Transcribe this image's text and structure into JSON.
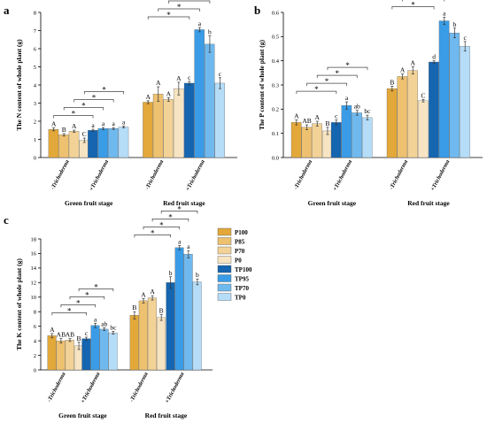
{
  "colors": {
    "P100": "#E3A83A",
    "P85": "#EDC170",
    "P70": "#F2D296",
    "P0": "#F6E4C2",
    "TP100": "#1565B0",
    "TP95": "#3A9CE6",
    "TP70": "#70B9EE",
    "TP0": "#B6DDF8"
  },
  "legend": [
    "P100",
    "P85",
    "P70",
    "P0",
    "TP100",
    "TP95",
    "TP70",
    "TP0"
  ],
  "chart_data": [
    {
      "panel": "a",
      "type": "bar",
      "ylabel": "The N content of whole plant (g)",
      "ylim": [
        0,
        8
      ],
      "yticks": [
        0,
        1,
        2,
        3,
        4,
        5,
        6,
        7,
        8
      ],
      "stages": [
        "Green fruit stage",
        "Red fruit stage"
      ],
      "treatments": [
        "-Trichoderma",
        "+Trichoderma"
      ],
      "groups": [
        {
          "stage": 0,
          "treatment": 0,
          "series": [
            "P100",
            "P85",
            "P70",
            "P0"
          ],
          "values": [
            1.55,
            1.25,
            1.45,
            0.95
          ],
          "errors": [
            0.08,
            0.07,
            0.06,
            0.12
          ],
          "letters": [
            "A",
            "B",
            "A",
            "C"
          ]
        },
        {
          "stage": 0,
          "treatment": 1,
          "series": [
            "TP100",
            "TP95",
            "TP70",
            "TP0"
          ],
          "values": [
            1.5,
            1.6,
            1.6,
            1.68
          ],
          "errors": [
            0.06,
            0.06,
            0.05,
            0.05
          ],
          "letters": [
            "a",
            "a",
            "a",
            "a"
          ]
        },
        {
          "stage": 1,
          "treatment": 0,
          "series": [
            "P100",
            "P85",
            "P70",
            "P0"
          ],
          "values": [
            3.05,
            3.5,
            3.2,
            3.8
          ],
          "errors": [
            0.08,
            0.4,
            0.1,
            0.35
          ],
          "letters": [
            "A",
            "A",
            "A",
            "A"
          ]
        },
        {
          "stage": 1,
          "treatment": 1,
          "series": [
            "TP100",
            "TP95",
            "TP70",
            "TP0"
          ],
          "values": [
            4.1,
            7.05,
            6.25,
            4.1
          ],
          "errors": [
            0.1,
            0.12,
            0.45,
            0.3
          ],
          "letters": [
            "c",
            "a",
            "b",
            "c"
          ]
        }
      ]
    },
    {
      "panel": "b",
      "type": "bar",
      "ylabel": "The P content of whole plant (g)",
      "ylim": [
        0,
        0.6
      ],
      "yticks": [
        0.0,
        0.1,
        0.2,
        0.3,
        0.4,
        0.5,
        0.6
      ],
      "stages": [
        "Green fruit stage",
        "Red fruit stage"
      ],
      "treatments": [
        "-Trichoderma",
        "+Trichoderma"
      ],
      "groups": [
        {
          "stage": 0,
          "treatment": 0,
          "series": [
            "P100",
            "P85",
            "P70",
            "P0"
          ],
          "values": [
            0.145,
            0.125,
            0.14,
            0.11
          ],
          "errors": [
            0.01,
            0.01,
            0.01,
            0.015
          ],
          "letters": [
            "A",
            "AB",
            "A",
            "B"
          ]
        },
        {
          "stage": 0,
          "treatment": 1,
          "series": [
            "TP100",
            "TP95",
            "TP70",
            "TP0"
          ],
          "values": [
            0.145,
            0.215,
            0.185,
            0.165
          ],
          "errors": [
            0.01,
            0.015,
            0.01,
            0.01
          ],
          "letters": [
            "c",
            "a",
            "ab",
            "bc"
          ]
        },
        {
          "stage": 1,
          "treatment": 0,
          "series": [
            "P100",
            "P85",
            "P70",
            "P0"
          ],
          "values": [
            0.285,
            0.335,
            0.36,
            0.235
          ],
          "errors": [
            0.01,
            0.01,
            0.015,
            0.005
          ],
          "letters": [
            "B",
            "A",
            "A",
            "C"
          ]
        },
        {
          "stage": 1,
          "treatment": 1,
          "series": [
            "TP100",
            "TP95",
            "TP70",
            "TP0"
          ],
          "values": [
            0.395,
            0.565,
            0.515,
            0.46
          ],
          "errors": [
            0.005,
            0.015,
            0.02,
            0.02
          ],
          "letters": [
            "d",
            "a",
            "b",
            "c"
          ]
        }
      ]
    },
    {
      "panel": "c",
      "type": "bar",
      "ylabel": "The K content of whole plant (g)",
      "ylim": [
        0,
        18
      ],
      "yticks": [
        0,
        2,
        4,
        6,
        8,
        10,
        12,
        14,
        16,
        18
      ],
      "stages": [
        "Green fruit stage",
        "Red fruit stage"
      ],
      "treatments": [
        "-Trichoderma",
        "+Trichoderma"
      ],
      "groups": [
        {
          "stage": 0,
          "treatment": 0,
          "series": [
            "P100",
            "P85",
            "P70",
            "P0"
          ],
          "values": [
            4.7,
            4.0,
            4.1,
            3.3
          ],
          "errors": [
            0.3,
            0.3,
            0.2,
            0.5
          ],
          "letters": [
            "A",
            "AB",
            "AB",
            "B"
          ]
        },
        {
          "stage": 0,
          "treatment": 1,
          "series": [
            "TP100",
            "TP95",
            "TP70",
            "TP0"
          ],
          "values": [
            4.3,
            6.1,
            5.6,
            5.1
          ],
          "errors": [
            0.2,
            0.3,
            0.2,
            0.2
          ],
          "letters": [
            "c",
            "a",
            "ab",
            "bc"
          ]
        },
        {
          "stage": 1,
          "treatment": 0,
          "series": [
            "P100",
            "P85",
            "P70",
            "P0"
          ],
          "values": [
            7.5,
            9.5,
            9.9,
            7.2
          ],
          "errors": [
            0.5,
            0.3,
            0.3,
            0.4
          ],
          "letters": [
            "B",
            "A",
            "A",
            "B"
          ]
        },
        {
          "stage": 1,
          "treatment": 1,
          "series": [
            "TP100",
            "TP95",
            "TP70",
            "TP0"
          ],
          "values": [
            12.0,
            16.8,
            15.9,
            12.1
          ],
          "errors": [
            0.8,
            0.3,
            0.5,
            0.4
          ],
          "letters": [
            "b",
            "a",
            "a",
            "b"
          ]
        }
      ]
    }
  ],
  "significance_marker": "*"
}
